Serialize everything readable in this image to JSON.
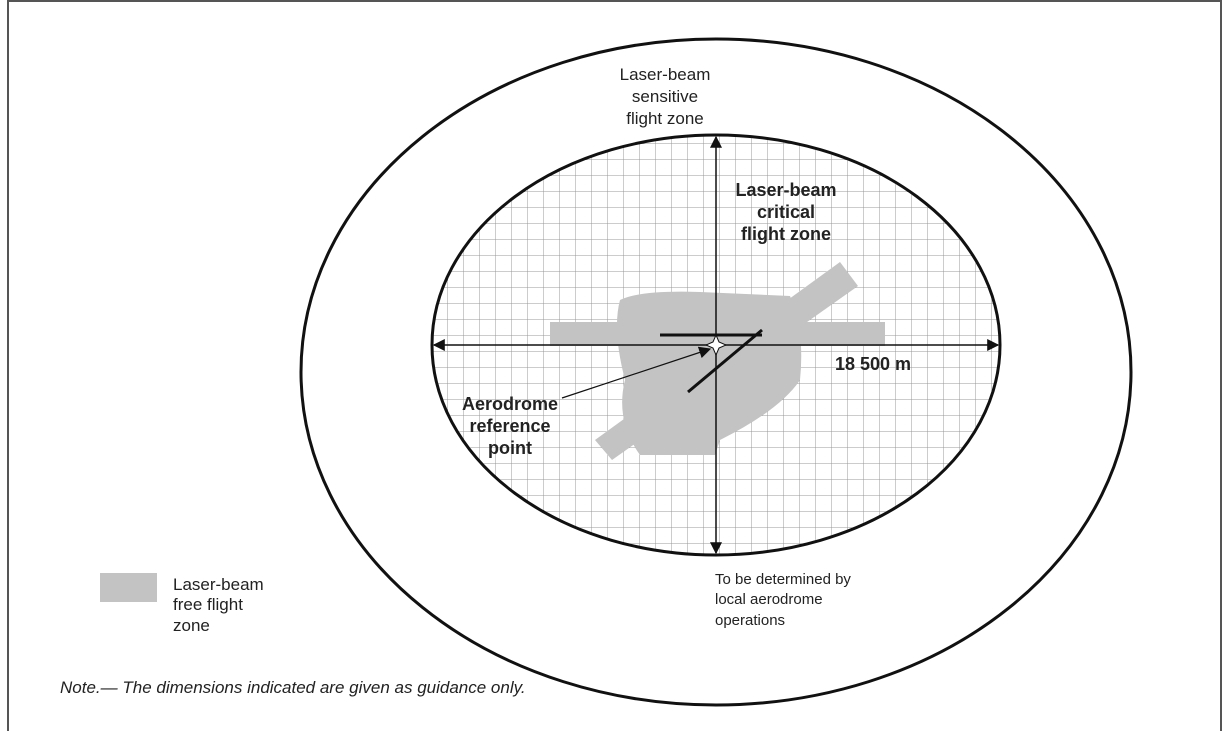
{
  "zones": {
    "sensitive": [
      "Laser-beam",
      "sensitive",
      "flight zone"
    ],
    "critical": [
      "Laser-beam",
      "critical",
      "flight zone"
    ],
    "distance": "18 500 m",
    "reference_point": [
      "Aerodrome",
      "reference",
      "point"
    ],
    "outer_note": [
      "To be determined by",
      "local aerodrome",
      "operations"
    ]
  },
  "legend": {
    "label": [
      "Laser-beam",
      "free flight",
      "zone"
    ]
  },
  "note": "Note.— The dimensions indicated are given as guidance only."
}
